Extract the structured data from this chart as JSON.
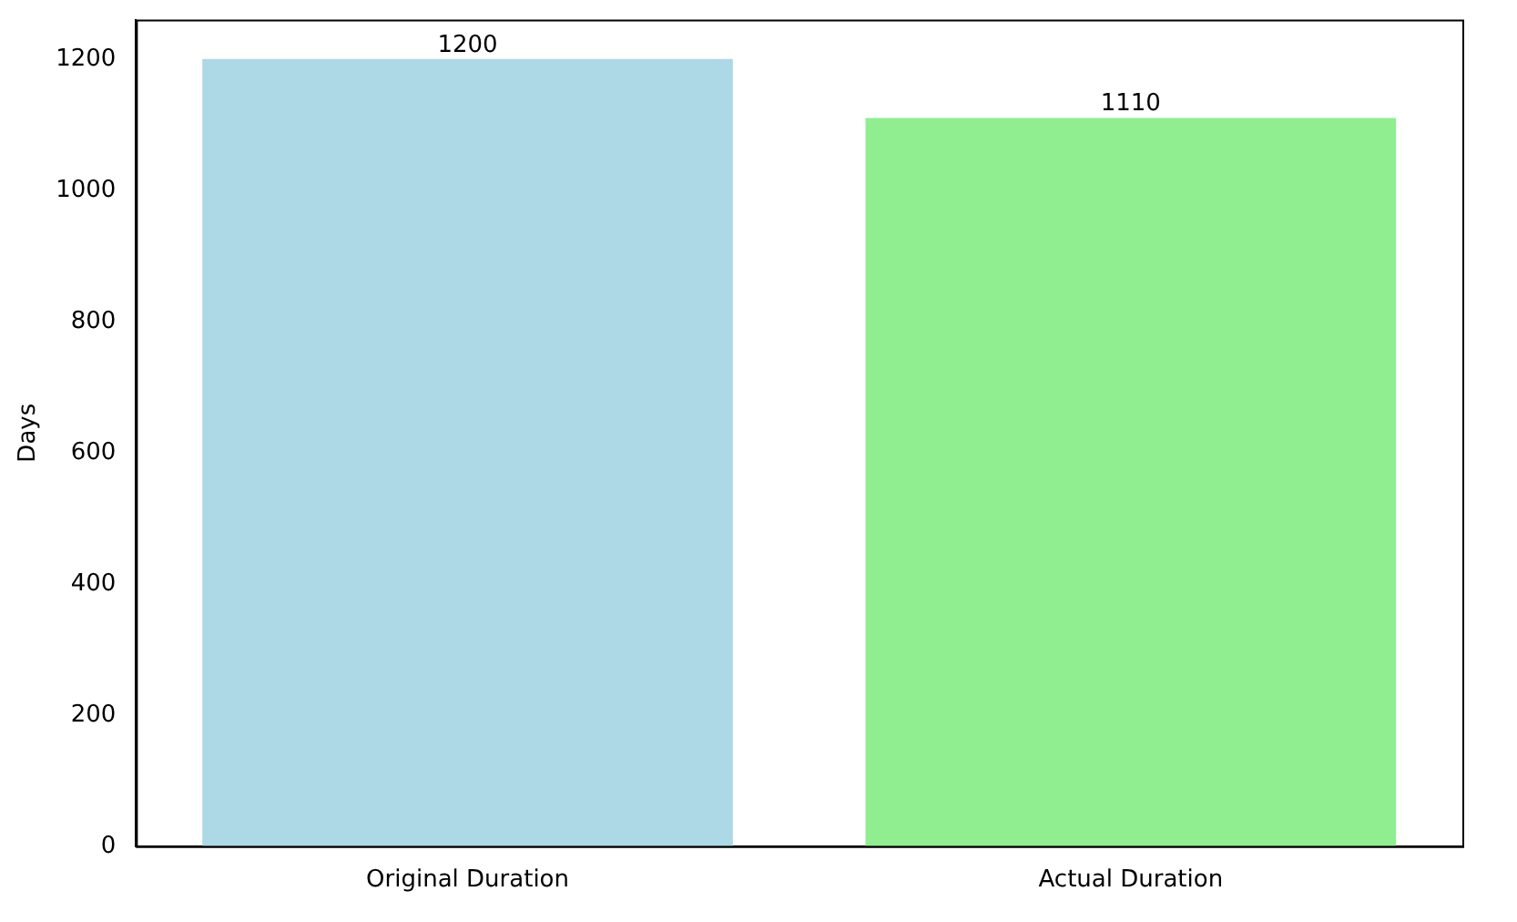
{
  "chart_data": {
    "type": "bar",
    "ylabel": "Days",
    "categories": [
      "Original Duration",
      "Actual Duration"
    ],
    "values": [
      1200,
      1110
    ],
    "colors": [
      "#add8e6",
      "#90ee90"
    ],
    "ylim": [
      0,
      1260
    ],
    "yticks": [
      0,
      200,
      400,
      600,
      800,
      1000,
      1200
    ],
    "grid": false,
    "legend": false,
    "data_labels": true
  }
}
